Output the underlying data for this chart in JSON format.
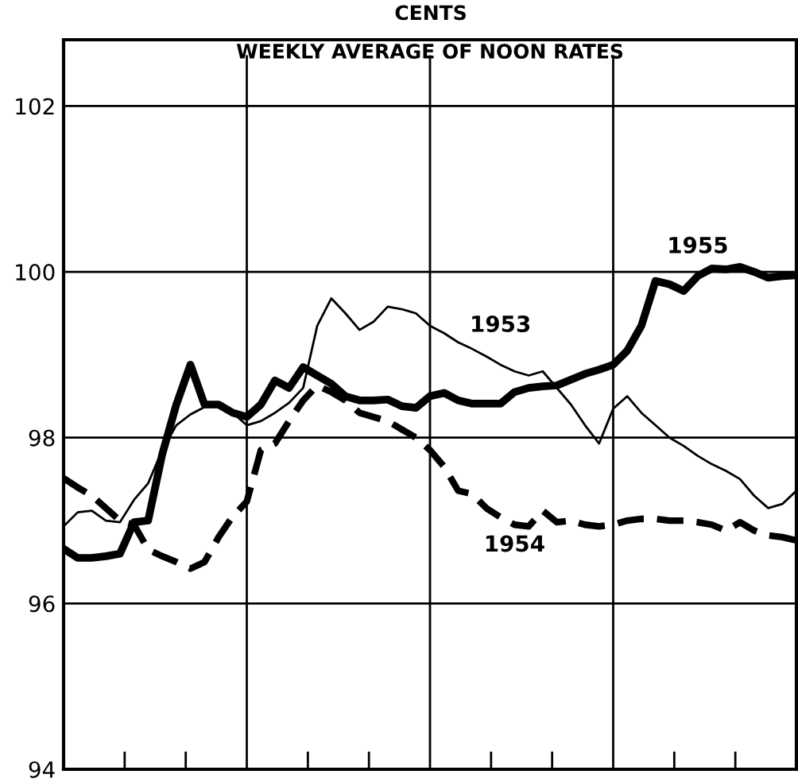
{
  "chart_data": {
    "type": "line",
    "title": "WEEKLY AVERAGE OF NOON RATES",
    "ylabel": "CENTS",
    "categories": [
      null,
      null,
      null,
      null,
      null,
      null,
      null,
      null,
      null,
      null,
      null,
      null,
      null,
      null,
      null,
      null,
      null,
      null,
      null,
      null,
      null,
      null,
      null,
      null,
      null,
      null,
      null,
      null,
      null,
      null,
      null,
      null,
      null,
      null,
      null,
      null,
      null,
      null,
      null,
      null,
      null,
      null,
      null,
      null,
      null,
      null,
      null,
      null,
      null,
      null,
      null,
      null,
      null
    ],
    "ylim": [
      94,
      102.8
    ],
    "yticks": [
      94,
      96,
      98,
      100,
      102
    ],
    "grid": true,
    "legend": false,
    "marker": "none",
    "tick_labels": "y",
    "series": [
      {
        "name": "1953",
        "color": "#000000",
        "line_style": "solid",
        "values": [
          96.93,
          97.1,
          97.12,
          97.0,
          96.98,
          97.25,
          97.45,
          97.85,
          98.15,
          98.28,
          98.37,
          98.37,
          98.3,
          98.15,
          98.2,
          98.3,
          98.42,
          98.6,
          99.35,
          99.68,
          99.5,
          99.3,
          99.4,
          99.58,
          99.55,
          99.5,
          99.35,
          99.26,
          99.15,
          99.07,
          98.98,
          98.88,
          98.8,
          98.75,
          98.8,
          98.6,
          98.4,
          98.15,
          97.93,
          98.35,
          98.5,
          98.3,
          98.15,
          98.0,
          97.9,
          97.78,
          97.68,
          97.6,
          97.5,
          97.3,
          97.15,
          97.2,
          97.36
        ]
      },
      {
        "name": "1954",
        "color": "#000000",
        "line_style": "dashed",
        "values": [
          97.51,
          97.4,
          97.3,
          97.15,
          97.0,
          96.95,
          96.65,
          96.57,
          96.5,
          96.42,
          96.5,
          96.8,
          97.05,
          97.23,
          97.85,
          97.93,
          98.2,
          98.45,
          98.63,
          98.55,
          98.45,
          98.3,
          98.25,
          98.2,
          98.1,
          98.0,
          97.85,
          97.65,
          97.36,
          97.32,
          97.15,
          97.04,
          96.95,
          96.93,
          97.12,
          96.98,
          97.0,
          96.95,
          96.93,
          96.95,
          97.0,
          97.02,
          97.02,
          97.0,
          97.0,
          96.98,
          96.95,
          96.88,
          96.98,
          96.88,
          96.82,
          96.8,
          96.76
        ]
      },
      {
        "name": "1955",
        "color": "#000000",
        "line_style": "solid",
        "values": [
          96.66,
          96.55,
          96.55,
          96.57,
          96.6,
          96.98,
          97.0,
          97.8,
          98.4,
          98.88,
          98.4,
          98.4,
          98.3,
          98.25,
          98.4,
          98.69,
          98.6,
          98.85,
          98.75,
          98.65,
          98.5,
          98.45,
          98.45,
          98.46,
          98.38,
          98.36,
          98.5,
          98.54,
          98.45,
          98.41,
          98.41,
          98.41,
          98.55,
          98.6,
          98.62,
          98.63,
          98.7,
          98.77,
          98.82,
          98.88,
          99.05,
          99.35,
          99.89,
          99.85,
          99.77,
          99.95,
          100.04,
          100.03,
          100.06,
          100.0,
          99.93,
          99.95,
          99.96
        ]
      }
    ]
  }
}
